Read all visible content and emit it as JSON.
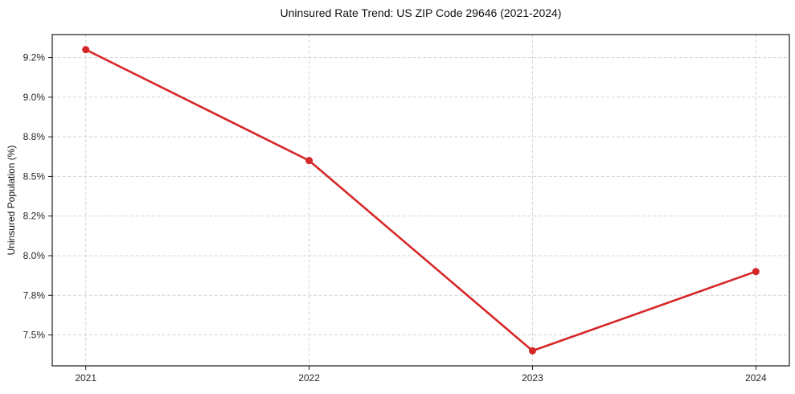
{
  "chart_data": {
    "type": "line",
    "title": "Uninsured Rate Trend: US ZIP Code 29646 (2021-2024)",
    "xlabel": "",
    "ylabel": "Uninsured Population (%)",
    "x": [
      2021,
      2022,
      2023,
      2024
    ],
    "values": [
      9.3,
      8.6,
      7.4,
      7.9
    ],
    "xlim": [
      2020.85,
      2024.15
    ],
    "ylim": [
      7.305,
      9.395
    ],
    "xticks": [
      2021,
      2022,
      2023,
      2024
    ],
    "xtick_labels": [
      "2021",
      "2022",
      "2023",
      "2024"
    ],
    "yticks": [
      7.5,
      7.75,
      8.0,
      8.25,
      8.5,
      8.75,
      9.0,
      9.25
    ],
    "ytick_labels": [
      "7.5%",
      "7.8%",
      "8.0%",
      "8.2%",
      "8.5%",
      "8.8%",
      "9.0%",
      "9.2%"
    ],
    "grid": true,
    "grid_style": "dashed",
    "legend": false,
    "line_color": "#d62728",
    "marker": "o",
    "grid_color": "#d4d4d4",
    "axis_color": "#1a1a1a",
    "tick_label_color": "#262626",
    "background": "#ffffff"
  }
}
